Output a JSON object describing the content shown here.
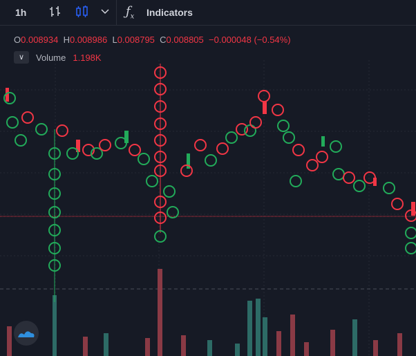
{
  "toolbar": {
    "interval": "1h",
    "indicators": "Indicators"
  },
  "legend": {
    "open_label": "O",
    "open": "0.008934",
    "high_label": "H",
    "high": "0.008986",
    "low_label": "L",
    "low": "0.008795",
    "close_label": "C",
    "close": "0.008805",
    "change": "−0.000048 (−0.54%)"
  },
  "volume": {
    "label": "Volume",
    "value": "1.198K"
  }
}
